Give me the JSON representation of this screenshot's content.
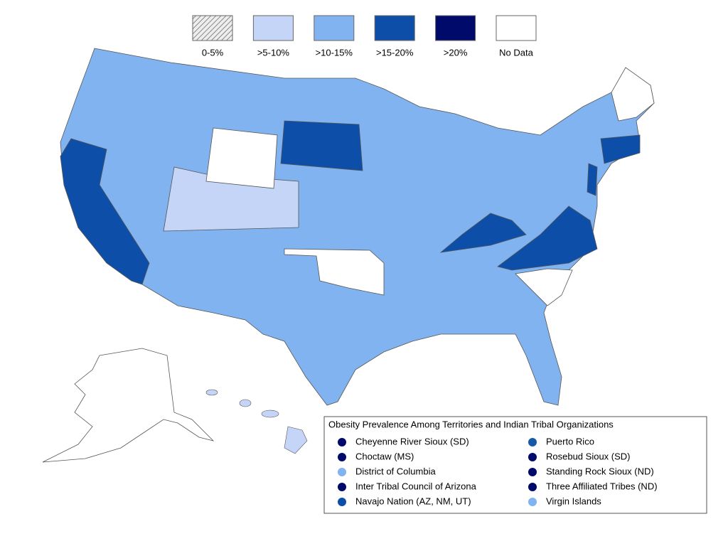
{
  "legend": {
    "items": [
      {
        "label": "0-5%",
        "color": "#d8d8d8",
        "pattern": "hatch"
      },
      {
        "label": ">5-10%",
        "color": "#c5d5f7"
      },
      {
        "label": ">10-15%",
        "color": "#80b3f0"
      },
      {
        "label": ">15-20%",
        "color": "#0d4fa8"
      },
      {
        "label": ">20%",
        "color": "#000a6b"
      },
      {
        "label": "No Data",
        "color": "#ffffff"
      }
    ]
  },
  "territories": {
    "title": "Obesity Prevalence Among Territories and Indian Tribal Organizations",
    "items": [
      {
        "name": "Cheyenne River Sioux (SD)",
        "color": "#000a6b"
      },
      {
        "name": "Choctaw (MS)",
        "color": "#000a6b"
      },
      {
        "name": "District of Columbia",
        "color": "#80b3f0"
      },
      {
        "name": "Inter Tribal Council of Arizona",
        "color": "#000a6b"
      },
      {
        "name": "Navajo Nation (AZ, NM, UT)",
        "color": "#0d4fa8"
      },
      {
        "name": "Puerto Rico",
        "color": "#1559a8"
      },
      {
        "name": "Rosebud Sioux (SD)",
        "color": "#000a6b"
      },
      {
        "name": "Standing Rock Sioux (ND)",
        "color": "#000a6b"
      },
      {
        "name": "Three Affiliated Tribes (ND)",
        "color": "#000a6b"
      },
      {
        "name": "Virgin Islands",
        "color": "#80b3f0"
      }
    ]
  }
}
